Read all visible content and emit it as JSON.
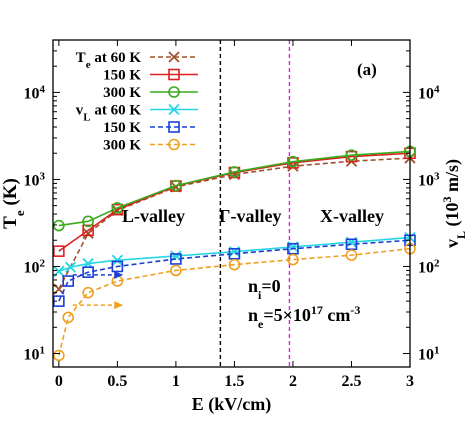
{
  "chart_data": {
    "type": "line",
    "panel_label": "(a)",
    "xlabel": "E (kV/cm)",
    "ylabel_left": {
      "base": "T",
      "sub": "e",
      "rest": " (K)"
    },
    "ylabel_right": {
      "base": "v",
      "sub": "L",
      "rest": " (10",
      "sup": "3",
      "rest2": " m/s)"
    },
    "xlim": [
      -0.05,
      3
    ],
    "ylim": [
      7,
      40000
    ],
    "log_y": true,
    "x_ticks": [
      "0",
      "0.5",
      "1",
      "1.5",
      "2",
      "2.5",
      "3"
    ],
    "x_tick_values": [
      0,
      0.5,
      1,
      1.5,
      2,
      2.5,
      3
    ],
    "y_ticks": [
      {
        "value": 10,
        "base": "10",
        "exp": "1"
      },
      {
        "value": 100,
        "base": "10",
        "exp": "2"
      },
      {
        "value": 1000,
        "base": "10",
        "exp": "3"
      },
      {
        "value": 10000,
        "base": "10",
        "exp": "4"
      }
    ],
    "series": [
      {
        "name": "T_e at 60 K",
        "legend": {
          "base": "T",
          "sub": "e",
          "rest": " at 60 K"
        },
        "color": "#a0522d",
        "marker": "x",
        "dash": "dashed",
        "x": [
          0,
          0.25,
          0.5,
          1.0,
          1.5,
          2.0,
          2.5,
          3.0
        ],
        "y": [
          55,
          240,
          440,
          820,
          1140,
          1420,
          1620,
          1760
        ]
      },
      {
        "name": "150 K",
        "legend": {
          "base": "150 K"
        },
        "color": "#dd1f1f",
        "marker": "square",
        "dash": "solid",
        "x": [
          0,
          0.25,
          0.5,
          1.0,
          1.5,
          2.0,
          2.5,
          3.0
        ],
        "y": [
          150,
          260,
          450,
          840,
          1200,
          1550,
          1830,
          2000
        ]
      },
      {
        "name": "300 K",
        "legend": {
          "base": "300 K"
        },
        "color": "#3aaa1e",
        "marker": "circle",
        "dash": "solid",
        "x": [
          0,
          0.25,
          0.5,
          1.0,
          1.5,
          2.0,
          2.5,
          3.0
        ],
        "y": [
          295,
          330,
          470,
          850,
          1220,
          1600,
          1900,
          2100
        ]
      },
      {
        "name": "v_L at 60 K",
        "legend": {
          "base": "v",
          "sub": "L",
          "rest": " at 60 K"
        },
        "color": "#25d6e6",
        "marker": "x",
        "dash": "solid",
        "x": [
          0,
          0.1,
          0.25,
          0.5,
          1.0,
          1.5,
          2.0,
          2.5,
          3.0
        ],
        "y": [
          88,
          98,
          108,
          118,
          132,
          148,
          168,
          190,
          215
        ]
      },
      {
        "name": "150 K",
        "legend": {
          "base": "150 K"
        },
        "color": "#1a3fd6",
        "marker": "square",
        "dash": "dashed",
        "x": [
          0,
          0.08,
          0.25,
          0.5,
          1.0,
          1.5,
          2.0,
          2.5,
          3.0
        ],
        "y": [
          40,
          68,
          86,
          100,
          122,
          140,
          160,
          180,
          200
        ]
      },
      {
        "name": "300 K",
        "legend": {
          "base": "300 K"
        },
        "color": "#f0a020",
        "marker": "circle",
        "dash": "dashed",
        "x": [
          0,
          0.08,
          0.25,
          0.5,
          1.0,
          1.5,
          2.0,
          2.5,
          3.0
        ],
        "y": [
          9.5,
          26,
          50,
          68,
          90,
          105,
          120,
          135,
          160
        ]
      }
    ],
    "vertical_lines": [
      {
        "x": 1.38,
        "color": "#000000",
        "dash": "dashed"
      },
      {
        "x": 1.97,
        "color": "#e020e0",
        "dash": "dashed"
      }
    ],
    "annotations": {
      "region_labels": [
        "L-valley",
        "Γ-valley",
        "X-valley"
      ],
      "ni": {
        "base": "n",
        "sub": "i",
        "rest": "=0"
      },
      "ne": {
        "base": "n",
        "sub": "e",
        "rest": "=5×10",
        "sup": "17",
        "rest2": " cm",
        "sup2": "-3"
      }
    },
    "arrows": [
      {
        "color": "#1a3fd6",
        "x0": 0.12,
        "x1": 0.55,
        "y": 80
      },
      {
        "color": "#f0a020",
        "x0": 0.12,
        "x1": 0.55,
        "y": 36
      }
    ],
    "legend_position": "top-left"
  }
}
